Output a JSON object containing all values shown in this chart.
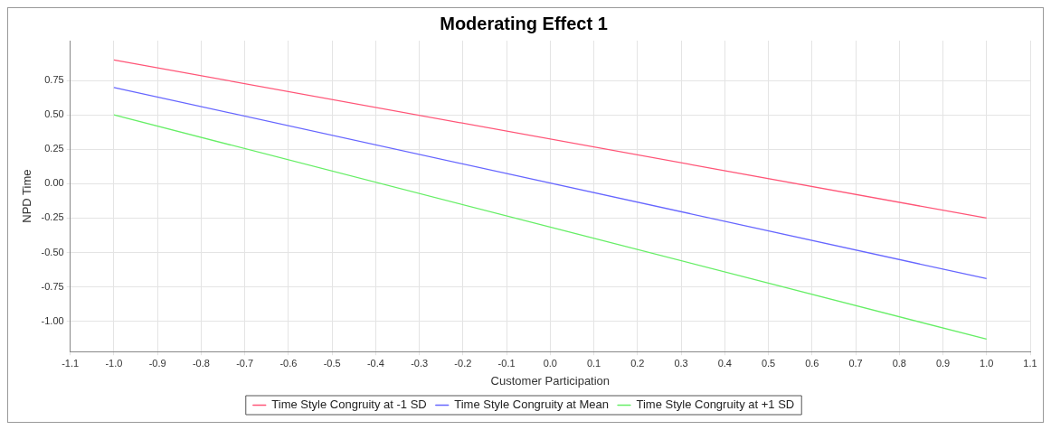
{
  "chart_data": {
    "type": "line",
    "title": "Moderating Effect 1",
    "xlabel": "Customer Participation",
    "ylabel": "NPD Time",
    "x": [
      -1,
      1
    ],
    "series": [
      {
        "name": "Time Style Congruity at -1 SD",
        "color": "#ff5577",
        "values": [
          0.9,
          -0.25
        ]
      },
      {
        "name": "Time Style Congruity at Mean",
        "color": "#6666ff",
        "values": [
          0.7,
          -0.69
        ]
      },
      {
        "name": "Time Style Congruity at +1 SD",
        "color": "#66ee66",
        "values": [
          0.5,
          -1.13
        ]
      }
    ],
    "xlim": [
      -1.1,
      1.1
    ],
    "xticks": [
      {
        "value": -1.1,
        "label": "-1.1"
      },
      {
        "value": -1,
        "label": "-1.0"
      },
      {
        "value": -0.9,
        "label": "-0.9"
      },
      {
        "value": -0.8,
        "label": "-0.8"
      },
      {
        "value": -0.7,
        "label": "-0.7"
      },
      {
        "value": -0.6,
        "label": "-0.6"
      },
      {
        "value": -0.5,
        "label": "-0.5"
      },
      {
        "value": -0.4,
        "label": "-0.4"
      },
      {
        "value": -0.3,
        "label": "-0.3"
      },
      {
        "value": -0.2,
        "label": "-0.2"
      },
      {
        "value": -0.1,
        "label": "-0.1"
      },
      {
        "value": 0,
        "label": "0.0"
      },
      {
        "value": 0.1,
        "label": "0.1"
      },
      {
        "value": 0.2,
        "label": "0.2"
      },
      {
        "value": 0.3,
        "label": "0.3"
      },
      {
        "value": 0.4,
        "label": "0.4"
      },
      {
        "value": 0.5,
        "label": "0.5"
      },
      {
        "value": 0.6,
        "label": "0.6"
      },
      {
        "value": 0.7,
        "label": "0.7"
      },
      {
        "value": 0.8,
        "label": "0.8"
      },
      {
        "value": 0.9,
        "label": "0.9"
      },
      {
        "value": 1,
        "label": "1.0"
      },
      {
        "value": 1.1,
        "label": "1.1"
      }
    ],
    "ylim": [
      -1.22,
      1.04
    ],
    "yticks": [
      0.75,
      {
        "value": 0.5,
        "label": "0.50"
      },
      0.25,
      {
        "value": 0,
        "label": "0.00"
      },
      -0.25,
      {
        "value": -0.5,
        "label": "-0.50"
      },
      -0.75,
      {
        "value": -1,
        "label": "-1.00"
      }
    ],
    "grid": true,
    "legend": "bottom",
    "marker": "none",
    "line_style": "solid"
  }
}
